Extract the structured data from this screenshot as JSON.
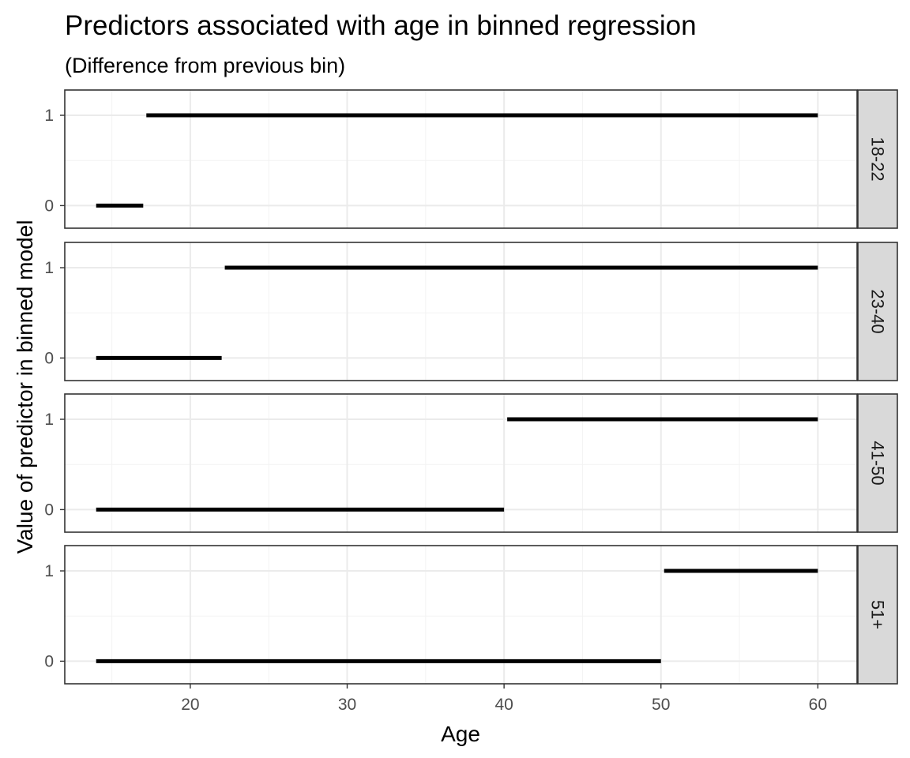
{
  "chart_data": {
    "type": "line",
    "title": "Predictors associated with age in binned regression",
    "subtitle": "(Difference from previous bin)",
    "xlabel": "Age",
    "ylabel": "Value of predictor in binned model",
    "xlim": [
      12,
      62.5
    ],
    "ylim": [
      -0.25,
      1.28
    ],
    "x_ticks": [
      20,
      30,
      40,
      50,
      60
    ],
    "y_ticks": [
      0,
      1
    ],
    "grid": true,
    "facets": [
      {
        "label": "18-22",
        "segments": [
          {
            "x_start": 14,
            "x_end": 17,
            "y": 0
          },
          {
            "x_start": 17.2,
            "x_end": 60,
            "y": 1
          }
        ]
      },
      {
        "label": "23-40",
        "segments": [
          {
            "x_start": 14,
            "x_end": 22,
            "y": 0
          },
          {
            "x_start": 22.2,
            "x_end": 60,
            "y": 1
          }
        ]
      },
      {
        "label": "41-50",
        "segments": [
          {
            "x_start": 14,
            "x_end": 40,
            "y": 0
          },
          {
            "x_start": 40.2,
            "x_end": 60,
            "y": 1
          }
        ]
      },
      {
        "label": "51+",
        "segments": [
          {
            "x_start": 14,
            "x_end": 50,
            "y": 0
          },
          {
            "x_start": 50.2,
            "x_end": 60,
            "y": 1
          }
        ]
      }
    ]
  }
}
